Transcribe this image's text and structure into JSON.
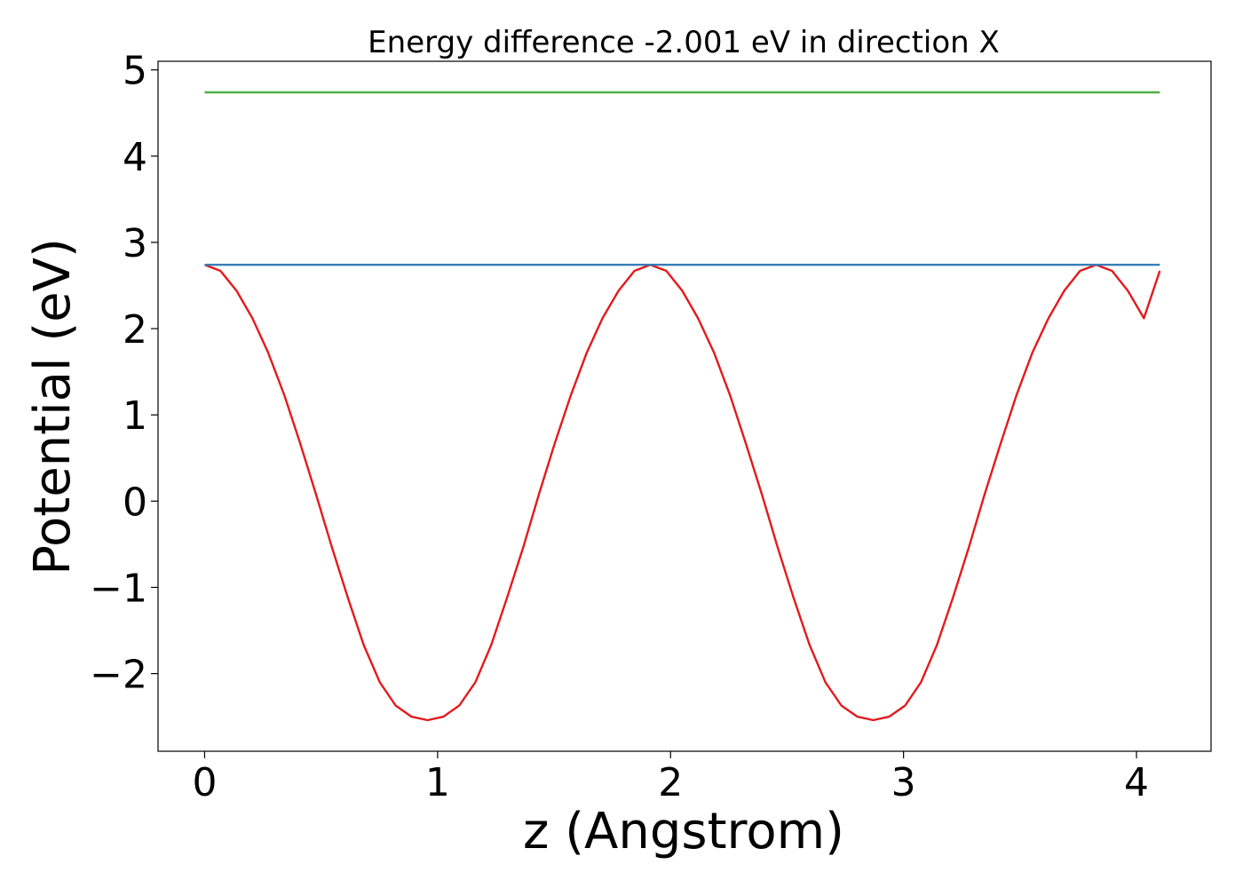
{
  "chart_data": {
    "type": "line",
    "title": "Energy difference -2.001 eV in direction X",
    "xlabel": "z (Angstrom)",
    "ylabel": "Potential (eV)",
    "xlim": [
      -0.2,
      4.32
    ],
    "ylim": [
      -2.9,
      5.1
    ],
    "xticks": [
      "0",
      "1",
      "2",
      "3",
      "4"
    ],
    "yticks": [
      "−2",
      "−1",
      "0",
      "1",
      "2",
      "3",
      "4",
      "5"
    ],
    "grid": false,
    "legend": "none",
    "colors": {
      "potential": "#e41a1c",
      "reference": "#377eb8",
      "upper": "#4daf4a"
    },
    "series": [
      {
        "x": [
          0.0,
          0.068,
          0.137,
          0.205,
          0.273,
          0.342,
          0.41,
          0.478,
          0.547,
          0.615,
          0.683,
          0.752,
          0.82,
          0.888,
          0.957,
          1.025,
          1.093,
          1.162,
          1.23,
          1.298,
          1.367,
          1.435,
          1.503,
          1.572,
          1.64,
          1.708,
          1.777,
          1.845,
          1.913,
          1.982,
          2.05,
          2.118,
          2.187,
          2.255,
          2.323,
          2.392,
          2.46,
          2.528,
          2.597,
          2.665,
          2.733,
          2.802,
          2.87,
          2.938,
          3.007,
          3.075,
          3.143,
          3.212,
          3.28,
          3.348,
          3.417,
          3.485,
          3.553,
          3.622,
          3.69,
          3.758,
          3.827,
          3.895,
          3.963,
          4.032,
          4.1
        ],
        "y": [
          2.74,
          2.67,
          2.44,
          2.12,
          1.72,
          1.23,
          0.67,
          0.08,
          -0.54,
          -1.12,
          -1.67,
          -2.1,
          -2.37,
          -2.5,
          -2.54,
          -2.5,
          -2.37,
          -2.1,
          -1.67,
          -1.12,
          -0.54,
          0.08,
          0.67,
          1.23,
          1.72,
          2.12,
          2.44,
          2.67,
          2.74,
          2.67,
          2.44,
          2.12,
          1.72,
          1.23,
          0.67,
          0.08,
          -0.54,
          -1.12,
          -1.67,
          -2.1,
          -2.37,
          -2.5,
          -2.54,
          -2.5,
          -2.37,
          -2.1,
          -1.67,
          -1.12,
          -0.54,
          0.08,
          0.67,
          1.23,
          1.72,
          2.12,
          2.44,
          2.67,
          2.74,
          2.67,
          2.44,
          2.12,
          2.67
        ],
        "color": "#e41a1c"
      },
      {
        "x": [
          0.0,
          4.1
        ],
        "y": [
          2.74,
          2.74
        ],
        "color": "#377eb8"
      },
      {
        "x": [
          0.0,
          4.1
        ],
        "y": [
          4.74,
          4.74
        ],
        "color": "#4daf4a"
      }
    ]
  }
}
